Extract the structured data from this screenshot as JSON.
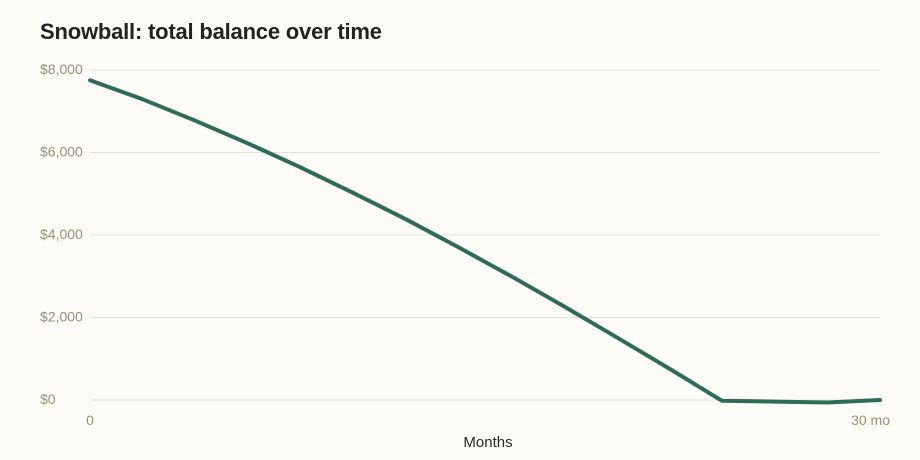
{
  "chart_data": {
    "type": "line",
    "title": "Snowball: total balance over time",
    "xlabel": "Months",
    "ylabel": "",
    "xlim": [
      0,
      30
    ],
    "ylim": [
      0,
      8000
    ],
    "grid": true,
    "colors": {
      "line": "#2e6b58",
      "grid": "#e2e0d8",
      "tick": "#9a9078"
    },
    "y_ticks": [
      {
        "value": 0,
        "label": "$0"
      },
      {
        "value": 2000,
        "label": "$2,000"
      },
      {
        "value": 4000,
        "label": "$4,000"
      },
      {
        "value": 6000,
        "label": "$6,000"
      },
      {
        "value": 8000,
        "label": "$8,000"
      }
    ],
    "x_ticks": [
      {
        "value": 0,
        "label": "0"
      },
      {
        "value": 30,
        "label": "30 mo"
      }
    ],
    "x": [
      0,
      2,
      4,
      6,
      8,
      10,
      12,
      14,
      16,
      18,
      20,
      22,
      24,
      26,
      28,
      30
    ],
    "series": [
      {
        "values": [
          7750,
          7290,
          6770,
          6220,
          5640,
          5020,
          4380,
          3700,
          3000,
          2270,
          1520,
          760,
          -20,
          -40,
          -60,
          0
        ]
      }
    ]
  }
}
